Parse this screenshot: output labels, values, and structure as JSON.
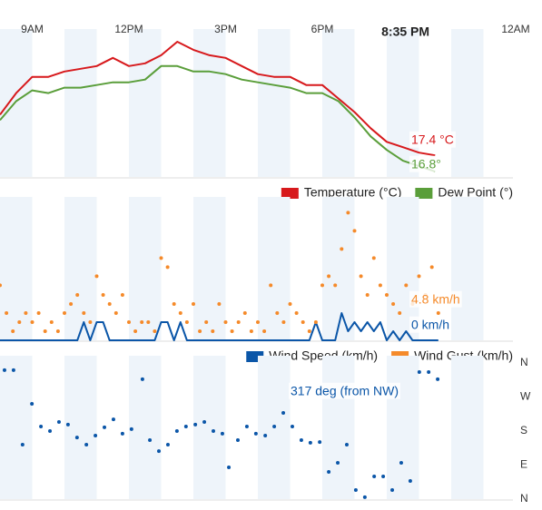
{
  "chart_data": [
    {
      "type": "line",
      "x": [
        8,
        8.5,
        9,
        9.5,
        10,
        10.5,
        11,
        11.5,
        12,
        12.5,
        13,
        13.5,
        14,
        14.5,
        15,
        15.5,
        16,
        16.5,
        17,
        17.5,
        18,
        18.5,
        19,
        19.5,
        20,
        20.5,
        21,
        21.5
      ],
      "series": [
        {
          "name": "Temperature (°C)",
          "color": "#d7191c",
          "end_label": "17.4 °C",
          "values": [
            18.9,
            19.7,
            20.3,
            20.3,
            20.5,
            20.6,
            20.7,
            21.0,
            20.7,
            20.8,
            21.1,
            21.6,
            21.3,
            21.1,
            21.0,
            20.7,
            20.4,
            20.3,
            20.3,
            20.0,
            20.0,
            19.5,
            19.0,
            18.4,
            17.9,
            17.7,
            17.5,
            17.4
          ]
        },
        {
          "name": "Dew Point (°)",
          "color": "#5a9e3a",
          "end_label": "16.8°",
          "values": [
            18.7,
            19.4,
            19.8,
            19.7,
            19.9,
            19.9,
            20.0,
            20.1,
            20.1,
            20.2,
            20.7,
            20.7,
            20.5,
            20.5,
            20.4,
            20.2,
            20.1,
            20.0,
            19.9,
            19.7,
            19.7,
            19.4,
            18.8,
            18.1,
            17.6,
            17.2,
            17.0,
            16.8
          ]
        }
      ],
      "xlim": [
        8,
        24
      ],
      "xticks": [
        {
          "value": 9,
          "label": "9AM"
        },
        {
          "value": 12,
          "label": "12PM"
        },
        {
          "value": 15,
          "label": "3PM"
        },
        {
          "value": 18,
          "label": "6PM"
        },
        {
          "value": 24,
          "label": "12AM"
        }
      ],
      "now": {
        "value": 20.58,
        "label": "8:35 PM"
      },
      "ylim": [
        16.6,
        21.8
      ],
      "legend": "bottom-right"
    },
    {
      "type": "line",
      "x": [
        8,
        8.2,
        8.4,
        8.6,
        8.8,
        9,
        9.2,
        9.4,
        9.6,
        9.8,
        10,
        10.2,
        10.4,
        10.6,
        10.8,
        11,
        11.2,
        11.4,
        11.6,
        11.8,
        12,
        12.2,
        12.4,
        12.6,
        12.8,
        13,
        13.2,
        13.4,
        13.6,
        13.8,
        14,
        14.2,
        14.4,
        14.6,
        14.8,
        15,
        15.2,
        15.4,
        15.6,
        15.8,
        16,
        16.2,
        16.4,
        16.6,
        16.8,
        17,
        17.2,
        17.4,
        17.6,
        17.8,
        18,
        18.2,
        18.4,
        18.6,
        18.8,
        19,
        19.2,
        19.4,
        19.6,
        19.8,
        20,
        20.2,
        20.4,
        20.6,
        20.8,
        21,
        21.2,
        21.4,
        21.6
      ],
      "series": [
        {
          "name": "Wind Speed (km/h)",
          "color": "#0b56a8",
          "style": "line",
          "end_label": "0 km/h",
          "values": [
            0,
            0,
            0,
            0,
            0,
            0,
            0,
            0,
            0,
            0,
            0,
            0,
            0,
            3.2,
            0,
            3.2,
            3.2,
            0,
            0,
            0,
            0,
            0,
            0,
            0,
            0,
            3.2,
            3.2,
            0,
            3.2,
            0,
            0,
            0,
            0,
            0,
            0,
            0,
            0,
            0,
            0,
            0,
            0,
            0,
            0,
            0,
            0,
            0,
            0,
            0,
            0,
            3.2,
            0,
            0,
            0,
            4.8,
            1.6,
            3.2,
            1.6,
            3.2,
            1.6,
            3.2,
            0,
            1.6,
            0,
            1.6,
            0,
            0,
            0,
            0,
            0
          ]
        },
        {
          "name": "Wind Gust (km/h)",
          "color": "#f58a2a",
          "style": "dots",
          "end_label": "4.8 km/h",
          "values": [
            9.7,
            4.8,
            1.6,
            3.2,
            4.8,
            3.2,
            4.8,
            1.6,
            3.2,
            1.6,
            4.8,
            6.4,
            8.0,
            4.8,
            3.2,
            11.3,
            8.0,
            6.4,
            4.8,
            8.0,
            3.2,
            1.6,
            3.2,
            3.2,
            1.6,
            14.5,
            12.9,
            6.4,
            4.8,
            3.2,
            6.4,
            1.6,
            3.2,
            1.6,
            6.4,
            3.2,
            1.6,
            3.2,
            4.8,
            1.6,
            3.2,
            1.6,
            9.7,
            4.8,
            3.2,
            6.4,
            4.8,
            3.2,
            1.6,
            3.2,
            9.7,
            11.3,
            9.7,
            16.1,
            22.5,
            19.3,
            11.3,
            8.0,
            14.5,
            9.7,
            8.0,
            6.4,
            4.8,
            9.7,
            6.4,
            11.3,
            8.0,
            12.9,
            4.8
          ]
        }
      ],
      "xlim": [
        8,
        24
      ],
      "ylim": [
        0,
        24
      ],
      "legend": "bottom-right"
    },
    {
      "type": "scatter",
      "x": [
        8.14,
        8.42,
        8.7,
        8.99,
        9.27,
        9.55,
        9.83,
        10.11,
        10.39,
        10.68,
        10.96,
        11.24,
        11.52,
        11.8,
        12.08,
        12.42,
        12.65,
        12.93,
        13.21,
        13.49,
        13.77,
        14.06,
        14.34,
        14.62,
        14.9,
        15.1,
        15.38,
        15.66,
        15.94,
        16.23,
        16.51,
        16.79,
        17.07,
        17.35,
        17.63,
        17.92,
        18.2,
        18.48,
        18.76,
        19.04,
        19.32,
        19.61,
        19.89,
        20.17,
        20.45,
        20.73,
        21.01,
        21.3,
        21.58
      ],
      "series": [
        {
          "color": "#0b56a8",
          "end_label": "317 deg (from NW)",
          "values": [
            341,
            341,
            144,
            252,
            192,
            180,
            204,
            197,
            163,
            144,
            168,
            190,
            211,
            173,
            185,
            317,
            156,
            127,
            144,
            180,
            192,
            197,
            204,
            180,
            173,
            84,
            156,
            192,
            173,
            168,
            192,
            228,
            192,
            156,
            149,
            151,
            72,
            96,
            144,
            24,
            5,
            60,
            60,
            24,
            96,
            48,
            336,
            336,
            317
          ]
        }
      ],
      "xlim": [
        8,
        24
      ],
      "ylim": [
        0,
        360
      ],
      "yticks": [
        {
          "value": 360,
          "label": "N"
        },
        {
          "value": 270,
          "label": "W"
        },
        {
          "value": 180,
          "label": "S"
        },
        {
          "value": 90,
          "label": "E"
        },
        {
          "value": 0,
          "label": "N"
        }
      ]
    }
  ]
}
